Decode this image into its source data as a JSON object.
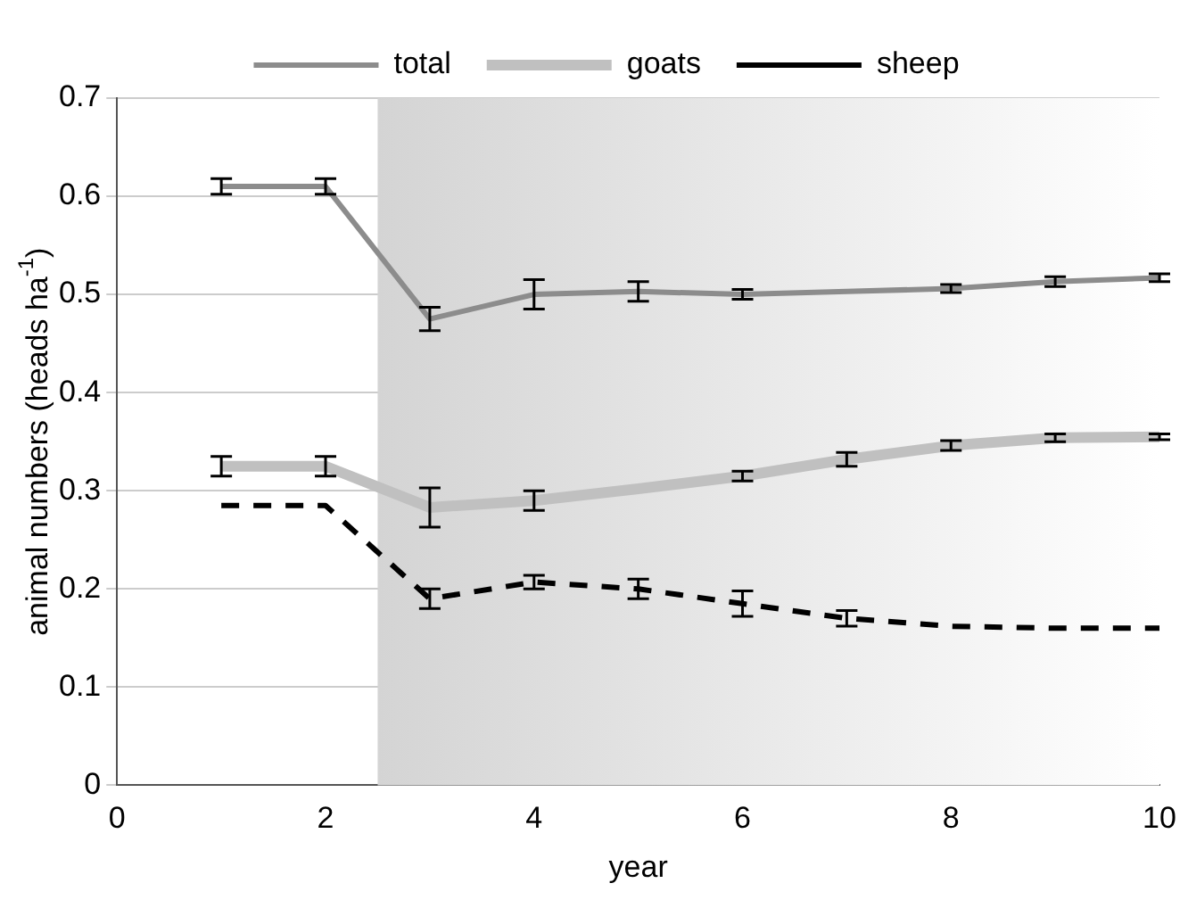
{
  "chart_data": {
    "type": "line",
    "xlabel": "year",
    "ylabel": "animal numbers (heads ha$^{-1}$)",
    "x": [
      1,
      2,
      3,
      4,
      5,
      6,
      7,
      8,
      9,
      10
    ],
    "series": [
      {
        "name": "total",
        "color": "#8c8c8c",
        "values": [
          0.61,
          0.61,
          0.475,
          0.5,
          0.503,
          0.5,
          0.503,
          0.506,
          0.513,
          0.517
        ],
        "errors": [
          0.008,
          0.008,
          0.012,
          0.015,
          0.01,
          0.005,
          null,
          0.004,
          0.005,
          0.004
        ]
      },
      {
        "name": "goats",
        "color": "#c0c0c0",
        "values": [
          0.325,
          0.325,
          0.283,
          0.29,
          0.302,
          0.315,
          0.332,
          0.346,
          0.354,
          0.355
        ],
        "errors": [
          0.01,
          0.01,
          0.02,
          0.01,
          null,
          0.005,
          0.007,
          0.005,
          0.004,
          0.003
        ]
      },
      {
        "name": "sheep",
        "color": "#000000",
        "line_style": "dashed",
        "values": [
          0.285,
          0.285,
          0.19,
          0.207,
          0.2,
          0.185,
          0.17,
          0.162,
          0.16,
          0.16
        ],
        "errors": [
          null,
          null,
          0.01,
          0.007,
          0.01,
          0.013,
          0.008,
          null,
          null,
          null
        ]
      }
    ],
    "xlim": [
      0,
      10
    ],
    "xticks": [
      0,
      2,
      4,
      6,
      8,
      10
    ],
    "ylim": [
      0,
      0.7
    ],
    "yticks": [
      0,
      0.1,
      0.2,
      0.3,
      0.4,
      0.5,
      0.6,
      0.7
    ],
    "bands": [
      {
        "axis": "x",
        "from": 2.5,
        "to": 10,
        "color": "#d4d4d4"
      }
    ],
    "grid": "y",
    "legend": "top"
  }
}
